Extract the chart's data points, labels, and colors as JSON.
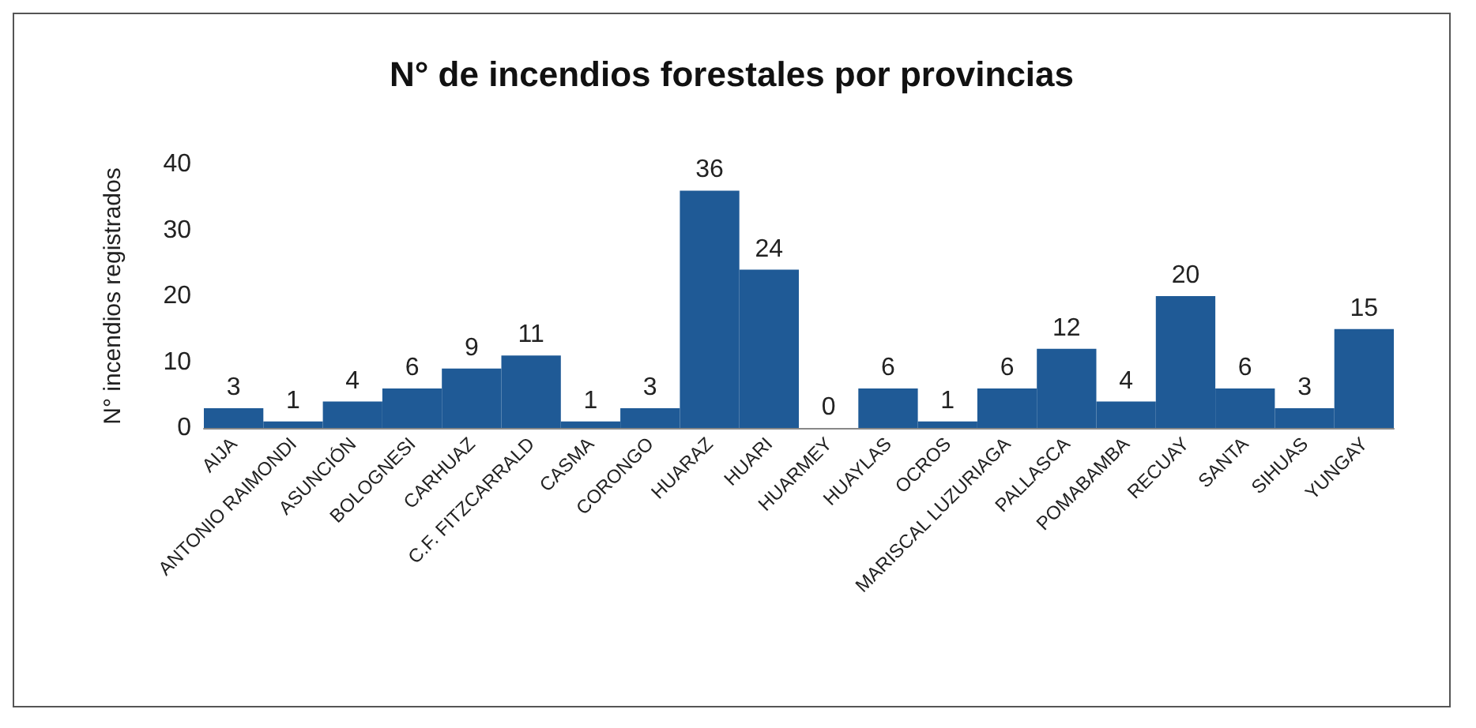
{
  "chart_data": {
    "type": "bar",
    "title": "N° de incendios forestales por provincias",
    "ylabel": "N° incendios registrados",
    "categories": [
      "AIJA",
      "ANTONIO RAIMONDI",
      "ASUNCIÓN",
      "BOLOGNESI",
      "CARHUAZ",
      "C.F. FITZCARRALD",
      "CASMA",
      "CORONGO",
      "HUARAZ",
      "HUARI",
      "HUARMEY",
      "HUAYLAS",
      "OCROS",
      "MARISCAL LUZURIAGA",
      "PALLASCA",
      "POMABAMBA",
      "RECUAY",
      "SANTA",
      "SIHUAS",
      "YUNGAY"
    ],
    "values": [
      3,
      1,
      4,
      6,
      9,
      11,
      1,
      3,
      36,
      24,
      0,
      6,
      1,
      6,
      12,
      4,
      20,
      6,
      3,
      15
    ],
    "color": "#1f5a96",
    "ylim": [
      0,
      40
    ],
    "yticks": [
      0,
      10,
      20,
      30,
      40
    ],
    "grid": false,
    "data_labels": true
  }
}
